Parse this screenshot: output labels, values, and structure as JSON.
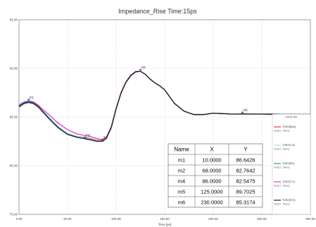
{
  "chart_data": {
    "type": "line",
    "title": "Impedance_Rise Time:15ps",
    "xlabel": "Time [ps]",
    "ylabel": "",
    "xlim": [
      0,
      300
    ],
    "ylim": [
      75,
      95
    ],
    "x_ticks": [
      "0.00",
      "50.00",
      "100.00",
      "150.00",
      "200.00",
      "250.00",
      "300.00"
    ],
    "y_ticks": [
      "75.00",
      "80.00",
      "85.00",
      "90.00",
      "95.00"
    ],
    "grid": true,
    "legend": {
      "title": "Curve Info",
      "placement": "right",
      "entries": [
        {
          "name": "TDRZ(Bndl)",
          "setup": "Setup1 : Sweep",
          "color": "#e8323c"
        },
        {
          "name": "TDRZ(T10)",
          "setup": "Setup1 : Sweep",
          "color": "#9fdcf0"
        },
        {
          "name": "TDRZ(Rf1)",
          "setup": "Setup1 : Sweep",
          "color": "#3a9a8a"
        },
        {
          "name": "TDRZ(T1?)",
          "setup": "Setup1 : Sweep",
          "color": "#e23ccf"
        },
        {
          "name": "TDRZ(R?2)",
          "setup": "Setup1 : Sweep",
          "color": "#222222"
        }
      ]
    },
    "series": [
      {
        "name": "TDRZ(Bndl)",
        "color": "#e8323c",
        "x": [
          0,
          5,
          10,
          15,
          20,
          30,
          40,
          50,
          60,
          68,
          75,
          80,
          86,
          90,
          95,
          100,
          105,
          110,
          115,
          120,
          125,
          130,
          135,
          140,
          145,
          150,
          160,
          170,
          180,
          190,
          200,
          210,
          220,
          230,
          250,
          270,
          300
        ],
        "y": [
          86.15,
          86.45,
          86.55,
          86.45,
          86.1,
          85.0,
          84.0,
          83.3,
          83.0,
          82.9,
          82.75,
          82.62,
          82.58,
          82.9,
          84.0,
          85.9,
          87.5,
          88.6,
          89.3,
          89.68,
          89.7,
          89.4,
          88.9,
          88.5,
          88.2,
          87.8,
          86.4,
          85.6,
          85.25,
          85.25,
          85.4,
          85.35,
          85.3,
          85.32,
          85.3,
          85.28,
          85.28
        ]
      },
      {
        "name": "TDRZ(T10)",
        "color": "#9fdcf0",
        "x": [
          0,
          5,
          10,
          15,
          20,
          30,
          40,
          50,
          60,
          68,
          75,
          80,
          86,
          90,
          95,
          100,
          105,
          110,
          115,
          120,
          125,
          130,
          135,
          140,
          145,
          150,
          160,
          170,
          180,
          190,
          200,
          210,
          220,
          230,
          250,
          270,
          300
        ],
        "y": [
          86.3,
          86.6,
          86.72,
          86.6,
          86.25,
          85.05,
          84.05,
          83.3,
          83.0,
          82.85,
          82.7,
          82.56,
          82.52,
          82.85,
          83.95,
          85.85,
          87.45,
          88.55,
          89.25,
          89.65,
          89.7,
          89.4,
          88.9,
          88.5,
          88.2,
          87.8,
          86.4,
          85.6,
          85.25,
          85.25,
          85.4,
          85.35,
          85.3,
          85.32,
          85.3,
          85.28,
          85.28
        ]
      },
      {
        "name": "TDRZ(Rf1)",
        "color": "#3a9a8a",
        "x": [
          0,
          5,
          10,
          15,
          20,
          30,
          40,
          50,
          60,
          68,
          75,
          80,
          86,
          90,
          95,
          100,
          105,
          110,
          115,
          120,
          125,
          130,
          135,
          140,
          145,
          150,
          160,
          170,
          180,
          190,
          200,
          210,
          220,
          230,
          250,
          270,
          300
        ],
        "y": [
          86.0,
          86.35,
          86.48,
          86.35,
          86.0,
          84.9,
          83.9,
          83.2,
          82.9,
          82.8,
          82.65,
          82.52,
          82.5,
          82.82,
          83.9,
          85.8,
          87.42,
          88.52,
          89.22,
          89.62,
          89.7,
          89.4,
          88.9,
          88.5,
          88.2,
          87.8,
          86.4,
          85.6,
          85.25,
          85.25,
          85.4,
          85.35,
          85.3,
          85.32,
          85.3,
          85.28,
          85.28
        ]
      },
      {
        "name": "TDRZ(T1?)",
        "color": "#e23ccf",
        "x": [
          0,
          5,
          10,
          15,
          20,
          30,
          40,
          50,
          60,
          68,
          75,
          80,
          86,
          90,
          95,
          100,
          105,
          110,
          115,
          120,
          125,
          130,
          135,
          140,
          145,
          150,
          160,
          170,
          180,
          190,
          200,
          210,
          220,
          230,
          250,
          270,
          300
        ],
        "y": [
          86.2,
          86.5,
          86.64,
          86.52,
          86.2,
          85.3,
          84.4,
          83.7,
          83.25,
          83.1,
          82.95,
          82.8,
          82.66,
          82.95,
          84.0,
          85.9,
          87.5,
          88.6,
          89.3,
          89.68,
          89.7,
          89.4,
          88.9,
          88.5,
          88.2,
          87.8,
          86.4,
          85.6,
          85.25,
          85.25,
          85.4,
          85.35,
          85.3,
          85.32,
          85.3,
          85.28,
          85.28
        ]
      },
      {
        "name": "TDRZ(R?2)",
        "color": "#222222",
        "x": [
          0,
          5,
          10,
          15,
          20,
          30,
          40,
          50,
          60,
          68,
          75,
          80,
          86,
          90,
          95,
          100,
          105,
          110,
          115,
          120,
          125,
          130,
          135,
          140,
          145,
          150,
          160,
          170,
          180,
          190,
          200,
          210,
          220,
          230,
          250,
          270,
          300
        ],
        "y": [
          86.1,
          86.42,
          86.55,
          86.42,
          86.05,
          84.95,
          83.95,
          83.22,
          82.92,
          82.76,
          82.62,
          82.5,
          82.5,
          82.82,
          83.9,
          85.85,
          87.45,
          88.55,
          89.25,
          89.65,
          89.7,
          89.4,
          88.9,
          88.5,
          88.2,
          87.8,
          86.4,
          85.6,
          85.25,
          85.25,
          85.4,
          85.35,
          85.3,
          85.32,
          85.3,
          85.28,
          85.28
        ]
      }
    ],
    "markers": [
      {
        "name": "m1",
        "x": 10.0,
        "y": 86.6426
      },
      {
        "name": "m2",
        "x": 68.0,
        "y": 82.7642
      },
      {
        "name": "m4",
        "x": 86.0,
        "y": 82.5475
      },
      {
        "name": "m5",
        "x": 125.0,
        "y": 89.7025
      },
      {
        "name": "m6",
        "x": 230.0,
        "y": 85.3174
      }
    ],
    "marker_table": {
      "headers": [
        "Name",
        "X",
        "Y"
      ],
      "rows": [
        [
          "m1",
          "10.0000",
          "86.6426"
        ],
        [
          "m2",
          "68.0000",
          "82.7642"
        ],
        [
          "m4",
          "86.0000",
          "82.5475"
        ],
        [
          "m5",
          "125.0000",
          "89.7025"
        ],
        [
          "m6",
          "230.0000",
          "85.3174"
        ]
      ]
    }
  }
}
